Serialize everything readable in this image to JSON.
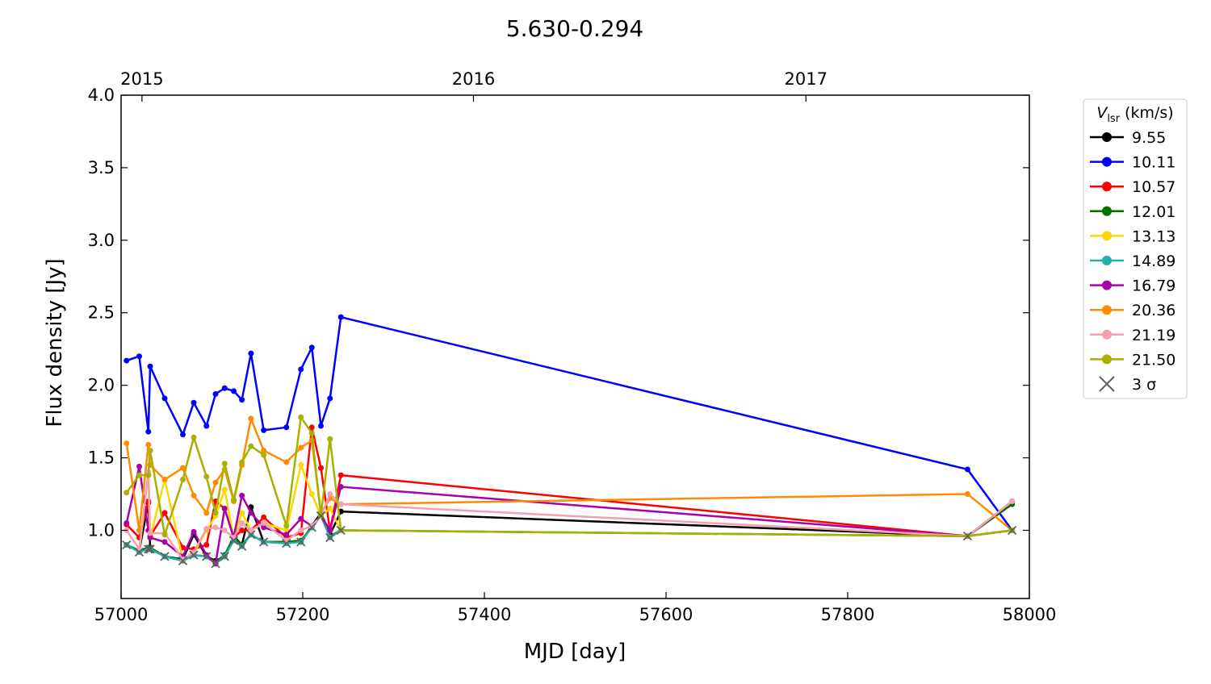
{
  "chart_data": {
    "type": "line",
    "title": "5.630-0.294",
    "xlabel": "MJD [day]",
    "ylabel": "Flux density [Jy]",
    "legend_title": {
      "symbol": "V",
      "subscript": "lsr",
      "unit": "(km/s)"
    },
    "legend": "outside right",
    "xlim": [
      57000,
      58000
    ],
    "xticks": [
      57000,
      57200,
      57400,
      57600,
      57800,
      58000
    ],
    "ylim": [
      0.53,
      4.0
    ],
    "yticks": [
      {
        "value": 1.0,
        "label": "1.0"
      },
      {
        "value": 1.5,
        "label": "1.5"
      },
      {
        "value": 2.0,
        "label": "2.0"
      },
      {
        "value": 2.5,
        "label": "2.5"
      },
      {
        "value": 3.0,
        "label": "3.0"
      },
      {
        "value": 3.5,
        "label": "3.5"
      },
      {
        "value": 4.0,
        "label": "4.0"
      }
    ],
    "x2ticks": [
      {
        "value": 57023,
        "label": "2015"
      },
      {
        "value": 57388,
        "label": "2016"
      },
      {
        "value": 57754,
        "label": "2017"
      }
    ],
    "x": [
      57006,
      57020,
      57030,
      57032,
      57048,
      57068,
      57080,
      57094,
      57104,
      57114,
      57124,
      57133,
      57143,
      57157,
      57182,
      57198,
      57210,
      57220,
      57230,
      57242,
      57932,
      57981
    ],
    "series": [
      {
        "name": "9.55",
        "color": "#000000",
        "values": [
          0.9,
          0.86,
          1.19,
          0.88,
          0.82,
          0.8,
          0.97,
          0.82,
          0.79,
          0.82,
          0.96,
          0.9,
          1.16,
          0.92,
          0.92,
          0.92,
          1.03,
          1.12,
          0.97,
          1.13,
          0.96,
          1.0
        ]
      },
      {
        "name": "10.11",
        "color": "#0000ff",
        "values": [
          2.17,
          2.2,
          1.68,
          2.13,
          1.91,
          1.66,
          1.88,
          1.72,
          1.94,
          1.98,
          1.96,
          1.9,
          2.22,
          1.69,
          1.71,
          2.11,
          2.26,
          1.72,
          1.91,
          2.47,
          1.42,
          1.0
        ]
      },
      {
        "name": "10.57",
        "color": "#ff0000",
        "values": [
          1.04,
          0.95,
          1.2,
          0.96,
          1.12,
          0.88,
          0.87,
          0.9,
          1.2,
          1.15,
          0.95,
          1.0,
          1.0,
          1.09,
          0.95,
          0.98,
          1.71,
          1.43,
          1.0,
          1.38,
          0.96,
          1.0
        ]
      },
      {
        "name": "12.01",
        "color": "#007000",
        "values": [
          0.9,
          0.86,
          0.88,
          0.88,
          0.82,
          0.79,
          0.83,
          0.82,
          0.78,
          0.83,
          0.95,
          0.9,
          0.97,
          0.92,
          0.92,
          0.93,
          1.02,
          1.1,
          0.96,
          1.0,
          0.96,
          1.18
        ]
      },
      {
        "name": "13.13",
        "color": "#ffd700",
        "values": [
          0.9,
          0.85,
          1.4,
          0.95,
          1.35,
          0.8,
          0.84,
          1.0,
          1.1,
          1.28,
          0.95,
          1.12,
          1.0,
          1.05,
          1.0,
          1.45,
          1.25,
          1.1,
          1.15,
          1.0,
          0.96,
          1.0
        ]
      },
      {
        "name": "14.89",
        "color": "#20b2aa",
        "values": [
          0.9,
          0.85,
          0.87,
          0.87,
          0.82,
          0.79,
          0.83,
          0.82,
          0.77,
          0.82,
          0.93,
          0.89,
          0.97,
          0.92,
          0.91,
          0.92,
          1.02,
          1.1,
          0.95,
          1.0,
          0.96,
          1.0
        ]
      },
      {
        "name": "16.79",
        "color": "#aa00aa",
        "values": [
          1.05,
          1.44,
          1.0,
          0.95,
          0.92,
          0.82,
          0.99,
          0.83,
          0.77,
          1.15,
          0.95,
          1.24,
          1.12,
          1.02,
          0.97,
          1.08,
          1.03,
          1.1,
          1.0,
          1.3,
          0.96,
          1.2
        ]
      },
      {
        "name": "20.36",
        "color": "#ff8c00",
        "values": [
          1.6,
          1.0,
          1.59,
          1.45,
          1.35,
          1.43,
          1.24,
          1.12,
          1.33,
          1.42,
          1.2,
          1.45,
          1.77,
          1.55,
          1.47,
          1.57,
          1.62,
          1.12,
          1.22,
          1.18,
          1.25,
          1.0
        ]
      },
      {
        "name": "21.19",
        "color": "#f4a0b0",
        "values": [
          1.0,
          0.87,
          1.4,
          0.98,
          0.98,
          0.8,
          0.85,
          1.01,
          1.02,
          1.0,
          0.95,
          1.05,
          1.0,
          1.05,
          0.93,
          1.0,
          1.03,
          1.1,
          1.25,
          1.18,
          0.96,
          1.2
        ]
      },
      {
        "name": "21.50",
        "color": "#a8b000",
        "values": [
          1.26,
          1.38,
          1.38,
          1.55,
          0.97,
          1.35,
          1.64,
          1.37,
          1.12,
          1.46,
          1.21,
          1.47,
          1.58,
          1.52,
          1.03,
          1.78,
          1.67,
          1.1,
          1.63,
          1.0,
          0.96,
          1.0
        ]
      },
      {
        "name": "3 σ",
        "color": "#606060",
        "marker": "x",
        "line": false,
        "values": [
          0.9,
          0.85,
          0.87,
          0.87,
          0.82,
          0.79,
          0.83,
          0.82,
          0.77,
          0.82,
          0.93,
          0.89,
          0.97,
          0.92,
          0.91,
          0.92,
          1.02,
          1.1,
          0.95,
          1.0,
          0.96,
          1.0
        ]
      }
    ]
  }
}
